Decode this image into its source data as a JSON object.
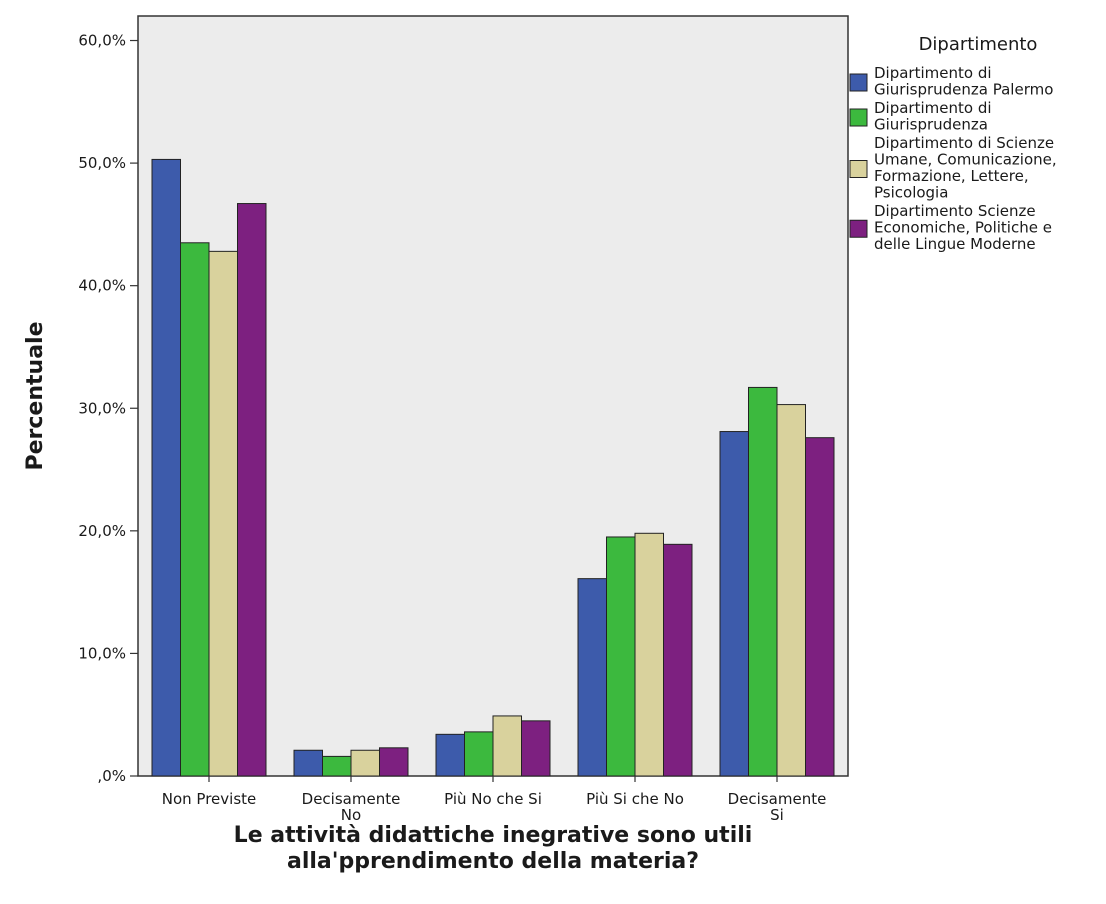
{
  "chart_data": {
    "type": "bar",
    "xlabel": "Le attività didattiche inegrative sono utili alla'pprendimento della materia?",
    "xlabel_lines": [
      "Le attività didattiche inegrative sono utili",
      "alla'pprendimento della materia?"
    ],
    "ylabel": "Percentuale",
    "ylim": [
      0,
      62
    ],
    "yticks": [
      0,
      10,
      20,
      30,
      40,
      50,
      60
    ],
    "ytick_labels": [
      ",0%",
      "10,0%",
      "20,0%",
      "30,0%",
      "40,0%",
      "50,0%",
      "60,0%"
    ],
    "categories": [
      "Non Previste",
      "Decisamente No",
      "Più No che Si",
      "Più Si che No",
      "Decisamente Si"
    ],
    "category_lines": [
      [
        "Non Previste"
      ],
      [
        "Decisamente",
        "No"
      ],
      [
        "Più No che Si"
      ],
      [
        "Più Si che No"
      ],
      [
        "Decisamente",
        "Si"
      ]
    ],
    "legend_title": "Dipartimento",
    "legend_position": "right",
    "grid": false,
    "plot_background": "#ececec",
    "series": [
      {
        "name": "Dipartimento di Giurisprudenza Palermo",
        "name_lines": [
          "Dipartimento di",
          "Giurisprudenza Palermo"
        ],
        "color": "#3d5bab",
        "values": [
          50.3,
          2.1,
          3.4,
          16.1,
          28.1
        ]
      },
      {
        "name": "Dipartimento di Giurisprudenza",
        "name_lines": [
          "Dipartimento di",
          "Giurisprudenza"
        ],
        "color": "#3cb93e",
        "values": [
          43.5,
          1.6,
          3.6,
          19.5,
          31.7
        ]
      },
      {
        "name": "Dipartimento di Scienze Umane, Comunicazione, Formazione, Lettere, Psicologia",
        "name_lines": [
          "Dipartimento di Scienze",
          "Umane, Comunicazione,",
          "Formazione, Lettere,",
          "Psicologia"
        ],
        "color": "#d9d29d",
        "values": [
          42.8,
          2.1,
          4.9,
          19.8,
          30.3
        ]
      },
      {
        "name": "Dipartimento Scienze Economiche, Politiche e delle Lingue Moderne",
        "name_lines": [
          "Dipartimento Scienze",
          "Economiche, Politiche e",
          "delle Lingue Moderne"
        ],
        "color": "#7d2080",
        "values": [
          46.7,
          2.3,
          4.5,
          18.9,
          27.6
        ]
      }
    ]
  }
}
